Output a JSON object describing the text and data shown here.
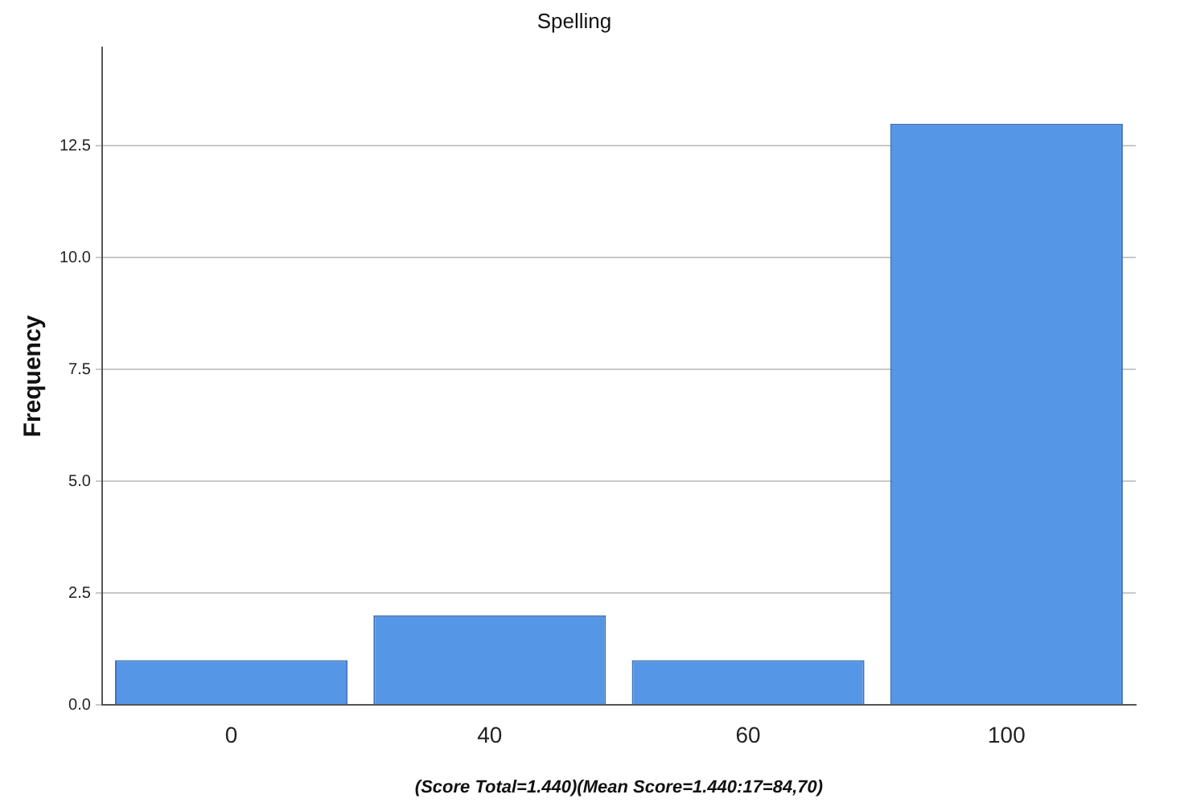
{
  "chart_data": {
    "type": "bar",
    "title": "Spelling",
    "ylabel": "Frequency",
    "xlabel": "(Score Total=1.440)(Mean Score=1.440:17=84,70)",
    "categories": [
      "0",
      "40",
      "60",
      "100"
    ],
    "values": [
      1,
      2,
      1,
      13
    ],
    "color": "#5596e6",
    "ylim": [
      0,
      14.7
    ],
    "yticks": [
      {
        "value": 0,
        "label": "0.0"
      },
      {
        "value": 2.5,
        "label": "2.5"
      },
      {
        "value": 5,
        "label": "5.0"
      },
      {
        "value": 7.5,
        "label": "7.5"
      },
      {
        "value": 10,
        "label": "10.0"
      },
      {
        "value": 12.5,
        "label": "12.5"
      }
    ],
    "grid": "y"
  }
}
